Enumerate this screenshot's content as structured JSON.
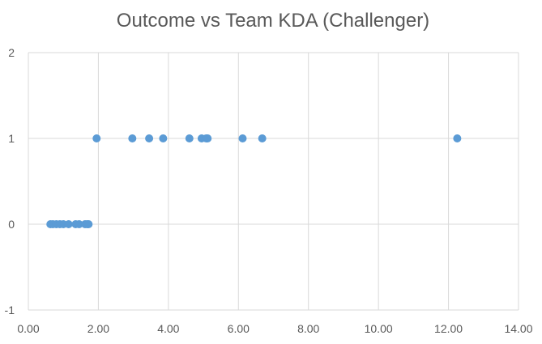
{
  "chart_data": {
    "type": "scatter",
    "title": "Outcome vs Team KDA (Challenger)",
    "xlabel": "",
    "ylabel": "",
    "xlim": [
      0,
      14
    ],
    "ylim": [
      -1,
      2
    ],
    "x_ticks": [
      "0.00",
      "2.00",
      "4.00",
      "6.00",
      "8.00",
      "10.00",
      "12.00",
      "14.00"
    ],
    "y_ticks": [
      "-1",
      "0",
      "1",
      "2"
    ],
    "grid": true,
    "legend": "none",
    "series": [
      {
        "color": "#5b9bd5",
        "points": [
          {
            "x": 0.63,
            "y": 0
          },
          {
            "x": 0.7,
            "y": 0
          },
          {
            "x": 0.8,
            "y": 0
          },
          {
            "x": 0.9,
            "y": 0
          },
          {
            "x": 1.0,
            "y": 0
          },
          {
            "x": 1.15,
            "y": 0
          },
          {
            "x": 1.35,
            "y": 0
          },
          {
            "x": 1.45,
            "y": 0
          },
          {
            "x": 1.62,
            "y": 0
          },
          {
            "x": 1.68,
            "y": 0
          },
          {
            "x": 1.72,
            "y": 0
          },
          {
            "x": 1.95,
            "y": 1
          },
          {
            "x": 2.97,
            "y": 1
          },
          {
            "x": 3.45,
            "y": 1
          },
          {
            "x": 3.85,
            "y": 1
          },
          {
            "x": 4.6,
            "y": 1
          },
          {
            "x": 4.95,
            "y": 1
          },
          {
            "x": 5.08,
            "y": 1
          },
          {
            "x": 5.12,
            "y": 1
          },
          {
            "x": 6.12,
            "y": 1
          },
          {
            "x": 6.68,
            "y": 1
          },
          {
            "x": 12.25,
            "y": 1
          }
        ]
      }
    ]
  }
}
